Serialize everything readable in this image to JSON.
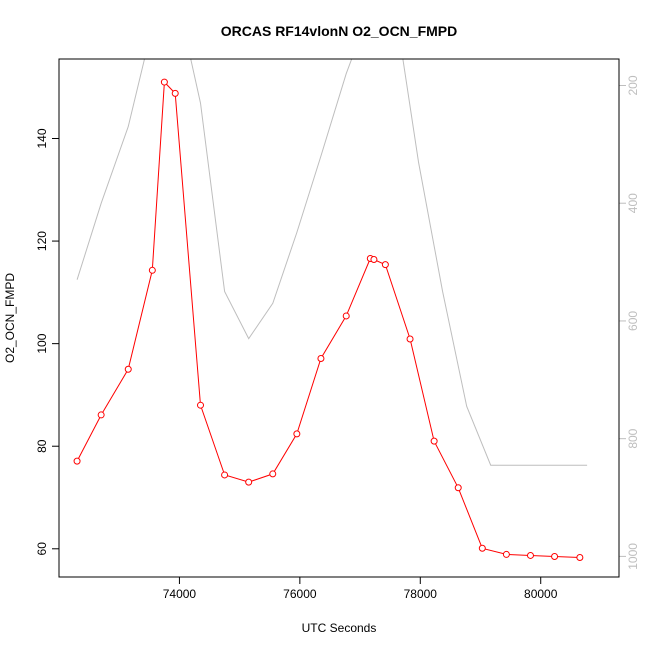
{
  "chart_data": {
    "type": "line",
    "title": "ORCAS RF14vlonN O2_OCN_FMPD",
    "xlabel": "UTC Seconds",
    "ylabel": "O2_OCN_FMPD",
    "xlim": [
      72000,
      81300
    ],
    "ylim": [
      54.5,
      155.5
    ],
    "x_ticks": [
      74000,
      76000,
      78000,
      80000
    ],
    "x_tick_labels": [
      "74000",
      "76000",
      "78000",
      "80000"
    ],
    "y_ticks": [
      60,
      80,
      100,
      120,
      140
    ],
    "y_tick_labels": [
      "60",
      "80",
      "100",
      "120",
      "140"
    ],
    "y2_reversed": true,
    "y2lim": [
      1035,
      155
    ],
    "y2_ticks": [
      200,
      400,
      600,
      800,
      1000
    ],
    "y2_tick_labels": [
      "200",
      "400",
      "600",
      "800",
      "1000"
    ],
    "grid": false,
    "colors": {
      "primary": "#ff0000",
      "secondary": "#bebebe",
      "axis": "#000000"
    },
    "series": [
      {
        "axis": "left",
        "style": "line+points",
        "color": "#ff0000",
        "x": [
          72300,
          72700,
          73150,
          73550,
          73750,
          73930,
          74350,
          74750,
          75150,
          75550,
          75950,
          76350,
          76770,
          77170,
          77230,
          77420,
          77830,
          78230,
          78630,
          79030,
          79430,
          79830,
          80230,
          80650
        ],
        "y": [
          77.1,
          86.1,
          95.0,
          114.3,
          151.0,
          148.8,
          88.0,
          74.4,
          73.0,
          74.6,
          82.4,
          97.1,
          105.4,
          116.6,
          116.4,
          115.4,
          100.9,
          81.0,
          71.9,
          60.1,
          58.9,
          58.7,
          58.5,
          58.3
        ]
      },
      {
        "axis": "right",
        "style": "line",
        "color": "#bebebe",
        "x": [
          72300,
          72700,
          73150,
          73550,
          73950,
          74350,
          74750,
          75150,
          75550,
          75950,
          76350,
          76770,
          77170,
          77570,
          77970,
          78370,
          78770,
          79170,
          79570,
          79970,
          80370,
          80770
        ],
        "y": [
          530,
          400,
          270,
          100,
          45,
          230,
          550,
          630,
          570,
          450,
          320,
          180,
          70,
          60,
          330,
          550,
          745,
          845,
          845,
          845,
          845,
          845
        ]
      }
    ]
  }
}
